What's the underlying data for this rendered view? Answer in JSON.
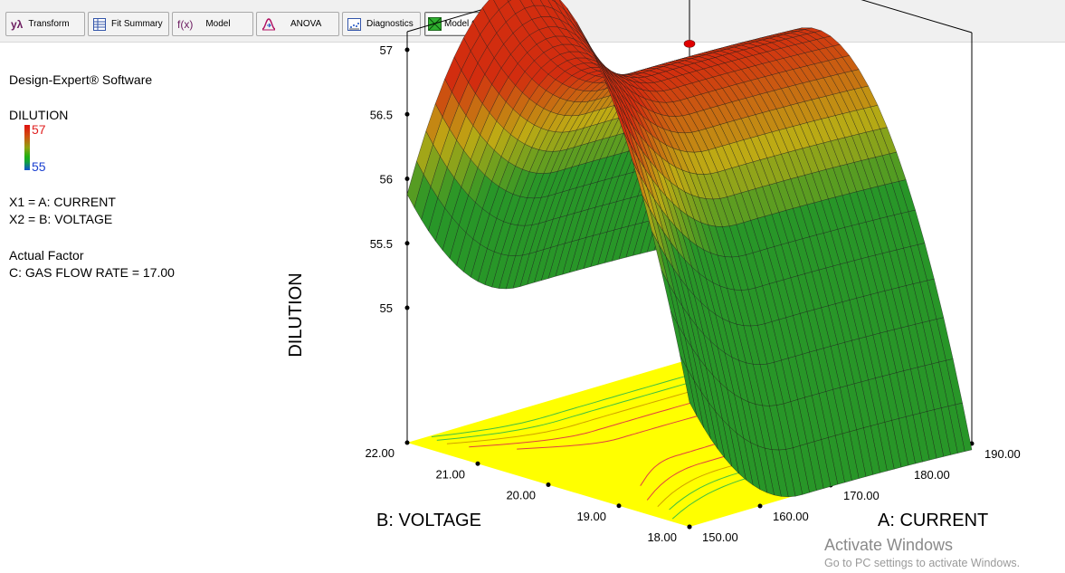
{
  "toolbar": {
    "buttons": [
      {
        "label": "Transform",
        "icon": "y-lambda-icon",
        "glyph": "yλ"
      },
      {
        "label": "Fit Summary",
        "icon": "table-icon"
      },
      {
        "label": "Model",
        "icon": "fx-icon",
        "glyph": "f(x)"
      },
      {
        "label": "ANOVA",
        "icon": "distribution-icon"
      },
      {
        "label": "Diagnostics",
        "icon": "scatter-icon"
      },
      {
        "label": "Model Graphs",
        "icon": "surface-icon"
      }
    ]
  },
  "info": {
    "software": "Design-Expert® Software",
    "response_name": "DILUTION",
    "legend_high": "57",
    "legend_low": "55",
    "x1": "X1 = A: CURRENT",
    "x2": "X2 = B: VOLTAGE",
    "actual_factor_heading": "Actual Factor",
    "actual_factor_value": "C: GAS FLOW RATE = 17.00"
  },
  "colors": {
    "legend_high": "#e02020",
    "legend_low": "#1a3fd0",
    "floor": "#ffff00",
    "surface_high": "#d03010",
    "surface_low": "#30a030"
  },
  "chart_data": {
    "type": "surface",
    "zlabel": "DILUTION",
    "xlabel": "A: CURRENT",
    "ylabel": "B: VOLTAGE",
    "x_ticks": [
      "150.00",
      "160.00",
      "170.00",
      "180.00",
      "190.00"
    ],
    "y_ticks": [
      "18.00",
      "19.00",
      "20.00",
      "21.00",
      "22.00"
    ],
    "z_ticks": [
      "55",
      "55.5",
      "56",
      "56.5",
      "57"
    ],
    "xlim": [
      150,
      190
    ],
    "ylim": [
      18,
      22
    ],
    "zlim": [
      55,
      57
    ],
    "design_point": {
      "x": 170,
      "y": 20,
      "z": 57.05
    },
    "corner_values": [
      {
        "x": 150,
        "y": 22,
        "z": 55.88
      },
      {
        "x": 190,
        "y": 22,
        "z": 56.81
      },
      {
        "x": 190,
        "y": 18,
        "z": 55.85
      }
    ],
    "peak": {
      "x": 166,
      "y": 20.2,
      "z": 56.85
    }
  },
  "watermark": {
    "line1": "Activate Windows",
    "line2": "Go to PC settings to activate Windows."
  }
}
